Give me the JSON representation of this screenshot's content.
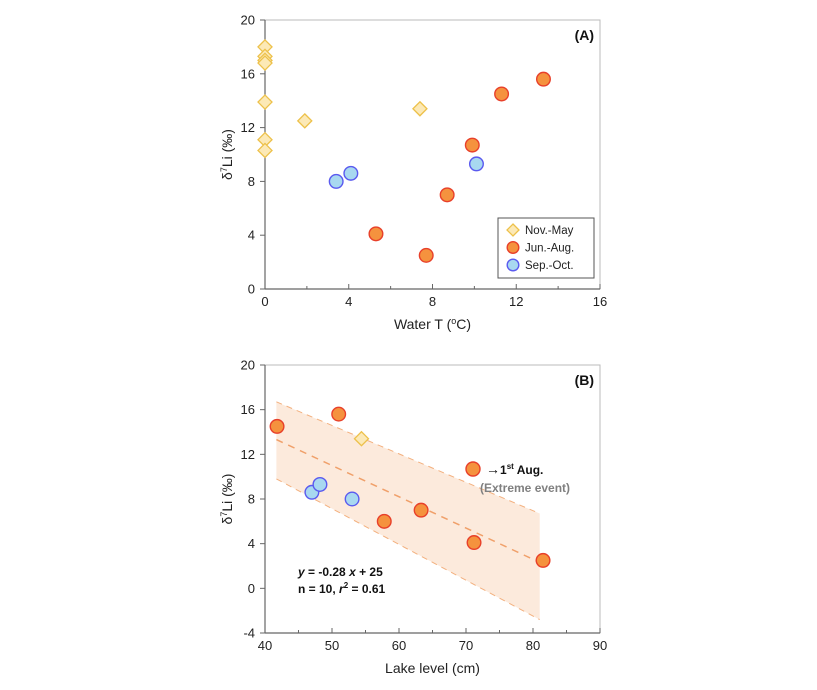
{
  "colors": {
    "nov_may_fill": "#FCE9B6",
    "nov_may_stroke": "#EDC14A",
    "jun_aug_fill": "#F5923E",
    "jun_aug_stroke": "#E8402A",
    "sep_oct_fill": "#A8D8F0",
    "sep_oct_stroke": "#5A5AEF",
    "band_fill": "#FBE3D0",
    "band_line": "#F3B07E",
    "fit_line": "#F0A06A",
    "axis": "#666666"
  },
  "chart_data": [
    {
      "type": "scatter",
      "panel_label": "(A)",
      "xlabel": "Water T (",
      "xlabel_sup": "o",
      "xlabel_end": "C)",
      "ylabel_pre": "δ",
      "ylabel_sup": "7",
      "ylabel_post": "Li (‰)",
      "xlim": [
        0,
        16
      ],
      "ylim": [
        0,
        20
      ],
      "xticks": [
        0,
        4,
        8,
        12,
        16
      ],
      "xminor": [
        2,
        6,
        10,
        14
      ],
      "yticks": [
        0,
        4,
        8,
        12,
        16,
        20
      ],
      "grid": false,
      "legend_position": "bottom-right",
      "legend": [
        "Nov.-May",
        "Jun.-Aug.",
        "Sep.-Oct."
      ],
      "series": [
        {
          "name": "Nov.-May",
          "marker": "diamond",
          "points": [
            [
              0,
              18.0
            ],
            [
              0,
              17.3
            ],
            [
              0,
              17.0
            ],
            [
              0,
              16.8
            ],
            [
              0,
              13.9
            ],
            [
              0,
              11.1
            ],
            [
              0,
              10.3
            ],
            [
              1.9,
              12.5
            ],
            [
              7.4,
              13.4
            ]
          ]
        },
        {
          "name": "Jun.-Aug.",
          "marker": "circle",
          "points": [
            [
              5.3,
              4.1
            ],
            [
              7.7,
              2.5
            ],
            [
              8.7,
              7.0
            ],
            [
              9.9,
              10.7
            ],
            [
              11.3,
              14.5
            ],
            [
              13.3,
              15.6
            ]
          ]
        },
        {
          "name": "Sep.-Oct.",
          "marker": "circle",
          "points": [
            [
              3.4,
              8.0
            ],
            [
              4.1,
              8.6
            ],
            [
              10.1,
              9.3
            ]
          ]
        }
      ]
    },
    {
      "type": "scatter",
      "panel_label": "(B)",
      "xlabel": "Lake level (cm)",
      "ylabel_pre": "δ",
      "ylabel_sup": "7",
      "ylabel_post": "Li (‰)",
      "xlim": [
        40,
        90
      ],
      "ylim": [
        -4,
        20
      ],
      "xticks": [
        40,
        50,
        60,
        70,
        80,
        90
      ],
      "xminor": [
        45,
        55,
        65,
        75,
        85
      ],
      "yticks": [
        -4,
        0,
        4,
        8,
        12,
        16,
        20
      ],
      "grid": false,
      "series": [
        {
          "name": "Jun.-Aug.",
          "marker": "circle",
          "points": [
            [
              41.8,
              14.5
            ],
            [
              51.0,
              15.6
            ],
            [
              57.8,
              6.0
            ],
            [
              63.3,
              7.0
            ],
            [
              71.2,
              4.1
            ],
            [
              81.5,
              2.5
            ]
          ]
        },
        {
          "name": "Nov.-May",
          "marker": "diamond",
          "points": [
            [
              54.4,
              13.4
            ]
          ]
        },
        {
          "name": "Sep.-Oct.",
          "marker": "circle",
          "points": [
            [
              47.0,
              8.6
            ],
            [
              48.2,
              9.3
            ],
            [
              53.0,
              8.0
            ]
          ]
        }
      ],
      "regression": {
        "slope": -0.28,
        "intercept": 25,
        "x_range": [
          41.7,
          81.0
        ]
      },
      "confidence_band": {
        "x": [
          41.7,
          81.0
        ],
        "upper": [
          16.7,
          6.7
        ],
        "lower": [
          9.8,
          -2.8
        ]
      },
      "equation_line1_y": "y",
      "equation_line1_a": " = -0.28 ",
      "equation_line1_x": "x",
      "equation_line1_b": " + 25",
      "equation_line2_a": "n = 10, ",
      "equation_line2_r": "r",
      "equation_line2_sup": "2",
      "equation_line2_b": " = 0.61",
      "annotation": {
        "arrow": "→",
        "text_pre": "1",
        "text_sup": "st",
        "text_post": " Aug.",
        "subtext": "(Extreme event)",
        "marker_series": "Jun.-Aug."
      }
    }
  ]
}
